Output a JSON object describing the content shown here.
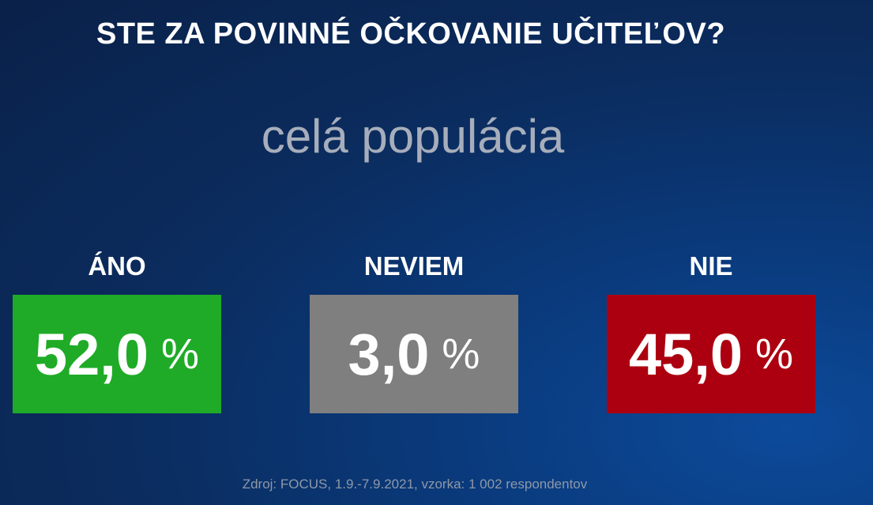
{
  "chart_data": {
    "type": "bar",
    "title": "STE ZA POVINNÉ OČKOVANIE UČITEĽOV?",
    "subtitle": "celá populácia",
    "categories": [
      "ÁNO",
      "NEVIEM",
      "NIE"
    ],
    "values": [
      52.0,
      3.0,
      45.0
    ],
    "value_labels": [
      "52,0",
      "3,0",
      "45,0"
    ],
    "unit": "%",
    "colors": [
      "#1fab27",
      "#7f7f7f",
      "#ac0010"
    ],
    "source": "Zdroj: FOCUS, 1.9.-7.9.2021, vzorka: 1 002 respondentov"
  }
}
